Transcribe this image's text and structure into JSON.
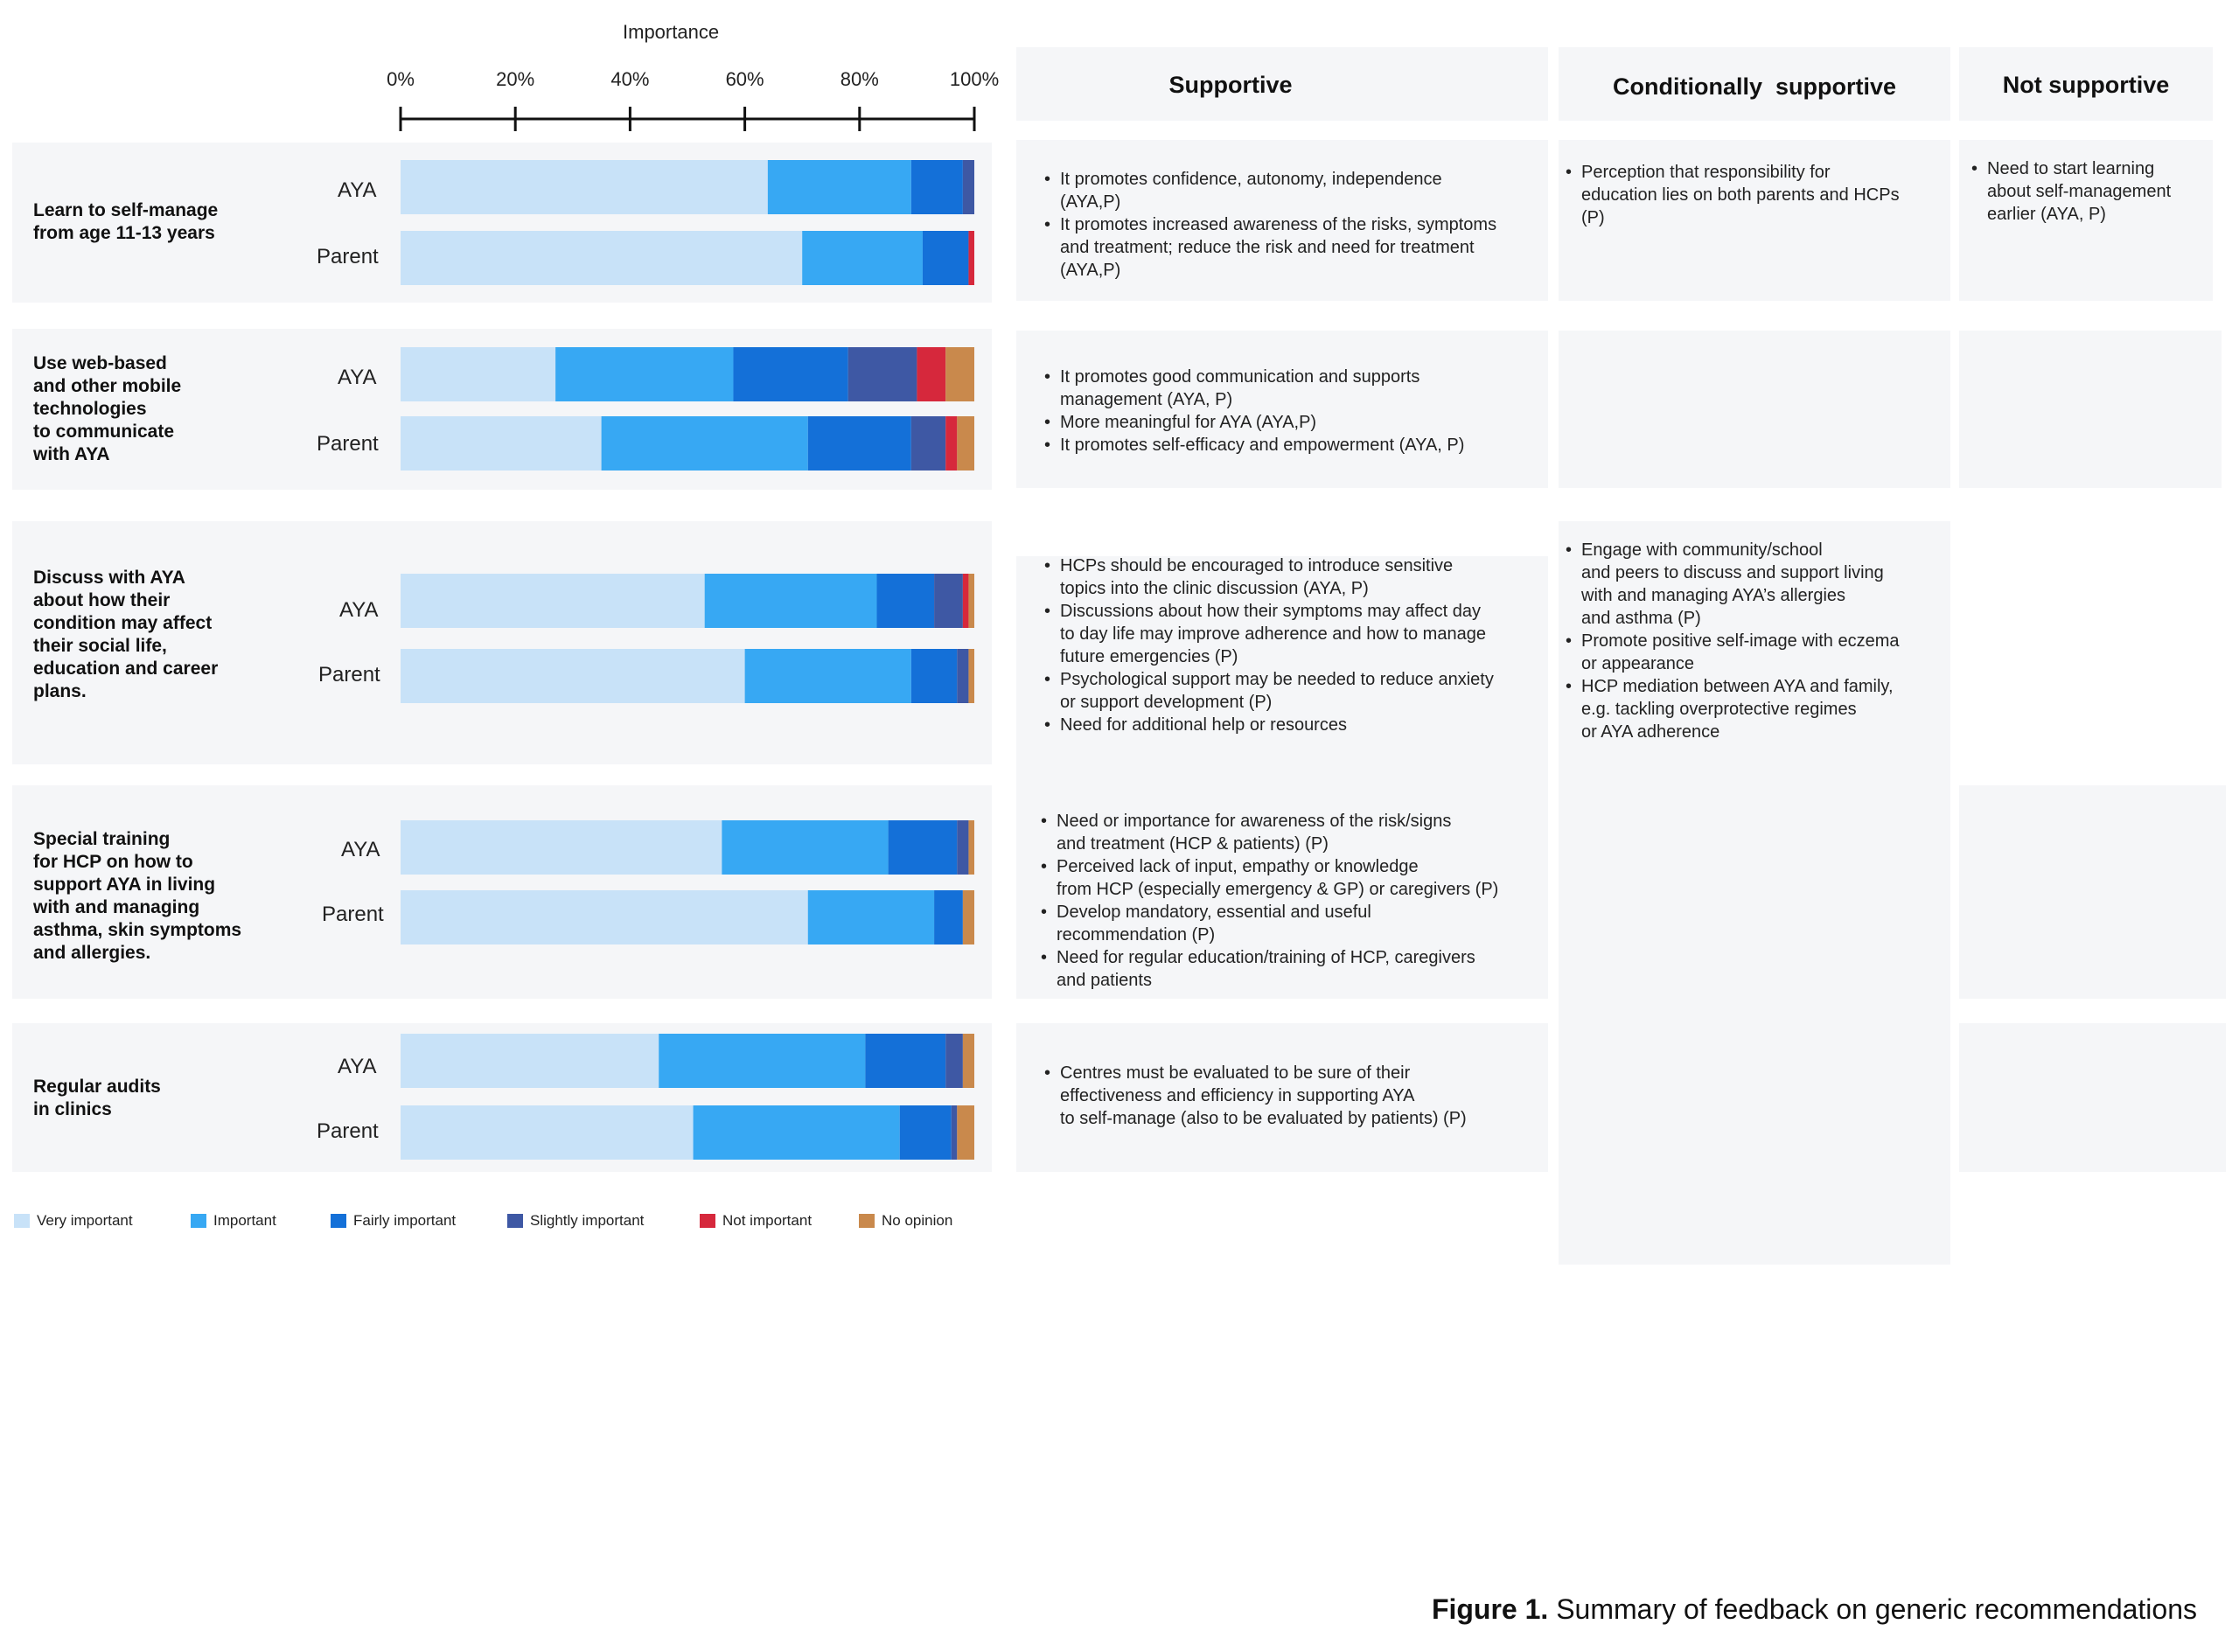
{
  "chart_data": {
    "type": "bar",
    "orientation": "horizontal-stacked-100",
    "title": "Importance",
    "xlim": [
      0,
      100
    ],
    "x_ticks": [
      "0%",
      "20%",
      "40%",
      "60%",
      "80%",
      "100%"
    ],
    "categories_legend": [
      {
        "name": "Very important",
        "color": "#c8e2f8"
      },
      {
        "name": "Important",
        "color": "#37a8f3"
      },
      {
        "name": "Fairly important",
        "color": "#1470d8"
      },
      {
        "name": "Slightly important",
        "color": "#3e58a4"
      },
      {
        "name": "Not important",
        "color": "#d6283c"
      },
      {
        "name": "No opinion",
        "color": "#c9894c"
      }
    ],
    "rows": [
      {
        "label": "Learn to self-manage\nfrom age 11-13 years",
        "groups": [
          {
            "name": "AYA",
            "values": [
              64,
              25,
              9,
              2,
              0,
              0
            ]
          },
          {
            "name": "Parent",
            "values": [
              70,
              21,
              8,
              0,
              1,
              0
            ]
          }
        ]
      },
      {
        "label": "Use web-based\nand other mobile\ntechnologies\nto communicate\nwith AYA",
        "groups": [
          {
            "name": "AYA",
            "values": [
              27,
              31,
              20,
              12,
              5,
              5
            ]
          },
          {
            "name": "Parent",
            "values": [
              35,
              36,
              18,
              6,
              2,
              3
            ]
          }
        ]
      },
      {
        "label": "Discuss with AYA\nabout how their\ncondition may affect\ntheir social life,\neducation and career\nplans.",
        "groups": [
          {
            "name": "AYA",
            "values": [
              53,
              30,
              10,
              5,
              1,
              1
            ]
          },
          {
            "name": "Parent",
            "values": [
              60,
              29,
              8,
              2,
              0,
              1
            ]
          }
        ]
      },
      {
        "label": "Special training\nfor HCP on how to\nsupport AYA in living\nwith and managing\nasthma, skin symptoms\nand allergies.",
        "groups": [
          {
            "name": "AYA",
            "values": [
              56,
              29,
              12,
              2,
              0,
              1
            ]
          },
          {
            "name": "Parent",
            "values": [
              71,
              22,
              5,
              0,
              0,
              2
            ]
          }
        ]
      },
      {
        "label": "Regular audits\nin clinics",
        "groups": [
          {
            "name": "AYA",
            "values": [
              45,
              36,
              14,
              3,
              0,
              2
            ]
          },
          {
            "name": "Parent",
            "values": [
              51,
              36,
              9,
              1,
              0,
              3
            ]
          }
        ]
      }
    ]
  },
  "columns": [
    "Supportive",
    "Conditionally  supportive",
    "Not supportive"
  ],
  "feedback": [
    {
      "supportive": [
        "It promotes confidence, autonomy, independence\n(AYA,P)",
        "It promotes increased awareness of the risks, symptoms\nand treatment; reduce the risk and need for treatment\n(AYA,P)"
      ],
      "conditional": [
        "Perception that responsibility for\neducation lies on both parents and HCPs\n(P)"
      ],
      "not_supportive": [
        "Need to start learning\nabout self-management\nearlier (AYA, P)"
      ]
    },
    {
      "supportive": [
        "It promotes good communication and supports\nmanagement  (AYA, P)",
        "More meaningful for AYA (AYA,P)",
        "It promotes self-efficacy and empowerment  (AYA, P)"
      ],
      "conditional": [],
      "not_supportive": []
    },
    {
      "supportive": [
        "HCPs should be encouraged to introduce sensitive\ntopics into the clinic discussion (AYA, P)",
        "Discussions about how their symptoms may affect day\nto day life may improve adherence and how to manage\nfuture emergencies  (P)",
        "Psychological support may be needed to reduce anxiety\nor support development (P)",
        "Need for additional help or resources"
      ],
      "conditional": [
        "Engage with community/school\nand peers to discuss and support living\nwith and managing AYA’s allergies\nand asthma (P)",
        "Promote positive self-image with eczema\nor appearance",
        "HCP mediation between AYA and family,\ne.g. tackling overprotective regimes\nor AYA adherence"
      ],
      "not_supportive": []
    },
    {
      "supportive": [
        "Need or importance for awareness of the risk/signs\nand treatment (HCP & patients) (P)",
        "Perceived  lack of input, empathy or knowledge\nfrom HCP (especially emergency & GP) or caregivers (P)",
        "Develop mandatory, essential and useful\nrecommendation (P)",
        "Need for regular education/training of HCP, caregivers\nand patients"
      ],
      "conditional": [],
      "not_supportive": []
    },
    {
      "supportive": [
        "Centres must be evaluated to be sure of their\neffectiveness and efficiency in supporting AYA\nto self-manage  (also to be evaluated by patients) (P)"
      ],
      "conditional": [],
      "not_supportive": []
    }
  ],
  "caption": {
    "label": "Figure 1.",
    "text": " Summary of feedback on generic recommendations"
  }
}
